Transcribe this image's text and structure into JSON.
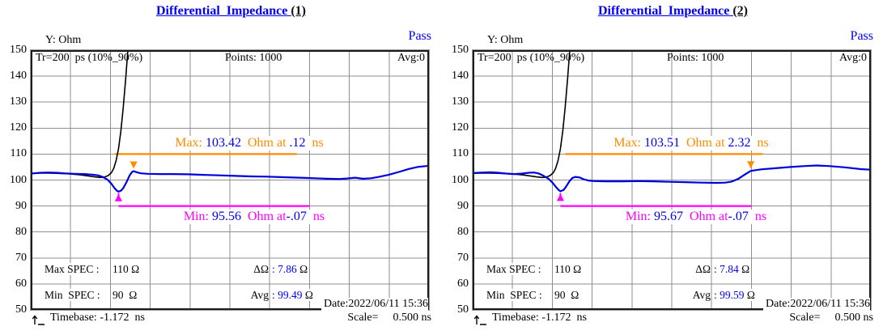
{
  "colors": {
    "blue": "#0000ee",
    "orange": "#ff8c00",
    "magenta": "#ff00ff",
    "grid": "#8f8f8f",
    "frame": "#1c1c1c",
    "trace_blue": "#0000dd",
    "trace_black": "#000000"
  },
  "chart_data": [
    {
      "type": "line",
      "title": "Differential_Impedance ",
      "title_suffix": "(1)",
      "status": "Pass",
      "date": "Date:2022/06/11 15:36",
      "header": {
        "tr": "Tr=200  ps (10%_90%)",
        "points": "Points: 1000",
        "avg": "Avg:0"
      },
      "y_axis": {
        "label": "Y: Ohm",
        "min": 50,
        "max": 150,
        "tick_step": 10,
        "ticks": [
          150,
          140,
          130,
          120,
          110,
          100,
          90,
          80,
          70,
          60,
          50
        ]
      },
      "x_axis": {
        "timebase_ns": -1.172,
        "scale_ns_per_div": 0.5,
        "divisions": 10,
        "unit": "ns"
      },
      "footer": {
        "timebase": "Timebase: -1.172  ns",
        "scale_label": "Scale=",
        "scale_value": "0.500 ns"
      },
      "max": {
        "label": "Max: ",
        "value": "103.42",
        "mid": "  Ohm at ",
        "time": ".12",
        "unit": "  ns",
        "value_num": 103.42,
        "time_ns": 0.12,
        "level_ohm": 110,
        "line_from_ns": -0.12,
        "line_to_ns": 2.17,
        "arrow_ns": 0.12
      },
      "min": {
        "label": "Min: ",
        "value": "95.56",
        "mid": "  Ohm at",
        "time": "-.07",
        "unit": "  ns",
        "value_num": 95.56,
        "time_ns": -0.07,
        "level_ohm": 90,
        "line_from_ns": -0.07,
        "line_to_ns": 2.33,
        "arrow_ns": -0.07
      },
      "specs": {
        "max_spec_label": "Max SPEC :",
        "max_spec_value": "110 Ω",
        "min_spec_label": "Min  SPEC :",
        "min_spec_value": "90  Ω",
        "delta_label": "ΔΩ",
        "delta_value": ": 7.86",
        "delta_unit": " Ω",
        "avg_label": "Avg",
        "avg_value": ": 99.49",
        "avg_unit": " Ω"
      },
      "measurements": {
        "max_ohm": 103.42,
        "max_at_ns": 0.12,
        "min_ohm": 95.56,
        "min_at_ns": -0.07,
        "delta_ohm": 7.86,
        "avg_ohm": 99.49,
        "max_spec_ohm": 110,
        "min_spec_ohm": 90,
        "points": 1000,
        "tr_ps": 200,
        "avg_count": 0
      },
      "series": [
        {
          "name": "differential_impedance_trace",
          "color": "#0000dd",
          "x_unit": "ns",
          "y_unit": "Ohm",
          "points": [
            [
              -1.172,
              102.5
            ],
            [
              -1.05,
              102.8
            ],
            [
              -0.95,
              102.9
            ],
            [
              -0.85,
              102.8
            ],
            [
              -0.75,
              102.6
            ],
            [
              -0.62,
              102.4
            ],
            [
              -0.5,
              102.3
            ],
            [
              -0.4,
              102.1
            ],
            [
              -0.33,
              101.8
            ],
            [
              -0.27,
              101.2
            ],
            [
              -0.21,
              100.2
            ],
            [
              -0.16,
              98.6
            ],
            [
              -0.12,
              96.9
            ],
            [
              -0.09,
              95.9
            ],
            [
              -0.07,
              95.56
            ],
            [
              -0.04,
              95.9
            ],
            [
              -0.01,
              96.9
            ],
            [
              0.03,
              99.2
            ],
            [
              0.07,
              101.8
            ],
            [
              0.1,
              103.1
            ],
            [
              0.12,
              103.42
            ],
            [
              0.16,
              103.0
            ],
            [
              0.21,
              102.6
            ],
            [
              0.3,
              102.4
            ],
            [
              0.45,
              102.3
            ],
            [
              0.6,
              102.3
            ],
            [
              0.8,
              102.2
            ],
            [
              1.0,
              102.0
            ],
            [
              1.2,
              101.8
            ],
            [
              1.4,
              101.6
            ],
            [
              1.6,
              101.4
            ],
            [
              1.8,
              101.3
            ],
            [
              2.0,
              101.1
            ],
            [
              2.2,
              100.9
            ],
            [
              2.4,
              100.7
            ],
            [
              2.55,
              100.5
            ],
            [
              2.7,
              100.4
            ],
            [
              2.8,
              100.6
            ],
            [
              2.9,
              100.9
            ],
            [
              3.0,
              100.5
            ],
            [
              3.1,
              100.7
            ],
            [
              3.2,
              101.2
            ],
            [
              3.32,
              102.0
            ],
            [
              3.45,
              103.1
            ],
            [
              3.58,
              104.3
            ],
            [
              3.7,
              105.1
            ],
            [
              3.8,
              105.4
            ],
            [
              3.828,
              105.5
            ]
          ]
        },
        {
          "name": "step_edge_trace",
          "color": "#000000",
          "x_unit": "ns",
          "y_unit": "Ohm",
          "points": [
            [
              -1.172,
              102.6
            ],
            [
              -1.0,
              102.7
            ],
            [
              -0.85,
              102.6
            ],
            [
              -0.7,
              102.4
            ],
            [
              -0.55,
              102.0
            ],
            [
              -0.45,
              101.6
            ],
            [
              -0.37,
              101.2
            ],
            [
              -0.3,
              101.0
            ],
            [
              -0.25,
              101.1
            ],
            [
              -0.2,
              101.7
            ],
            [
              -0.16,
              102.8
            ],
            [
              -0.13,
              104.5
            ],
            [
              -0.1,
              107.5
            ],
            [
              -0.07,
              112.0
            ],
            [
              -0.04,
              119.0
            ],
            [
              -0.01,
              128.0
            ],
            [
              0.02,
              139.0
            ],
            [
              0.05,
              151.0
            ],
            [
              0.07,
              158.0
            ]
          ]
        }
      ]
    },
    {
      "type": "line",
      "title": "Differential_Impedance ",
      "title_suffix": "(2)",
      "status": "Pass",
      "date": "Date:2022/06/11 15:36",
      "header": {
        "tr": "Tr=200  ps (10%_90%)",
        "points": "Points: 1000",
        "avg": "Avg:0"
      },
      "y_axis": {
        "label": "Y: Ohm",
        "min": 50,
        "max": 150,
        "tick_step": 10,
        "ticks": [
          150,
          140,
          130,
          120,
          110,
          100,
          90,
          80,
          70,
          60,
          50
        ]
      },
      "x_axis": {
        "timebase_ns": -1.172,
        "scale_ns_per_div": 0.5,
        "divisions": 10,
        "unit": "ns"
      },
      "footer": {
        "timebase": "Timebase: -1.172  ns",
        "scale_label": "Scale=",
        "scale_value": "0.500 ns"
      },
      "max": {
        "label": "Max: ",
        "value": "103.51",
        "mid": "  Ohm at ",
        "time": "2.32",
        "unit": "  ns",
        "value_num": 103.51,
        "time_ns": 2.32,
        "level_ohm": 110,
        "line_from_ns": -0.01,
        "line_to_ns": 2.47,
        "arrow_ns": 2.32
      },
      "min": {
        "label": "Min: ",
        "value": "95.67",
        "mid": "  Ohm at",
        "time": "-.07",
        "unit": "  ns",
        "value_num": 95.67,
        "time_ns": -0.07,
        "level_ohm": 90,
        "line_from_ns": -0.07,
        "line_to_ns": 2.33,
        "arrow_ns": -0.07
      },
      "specs": {
        "max_spec_label": "Max SPEC :",
        "max_spec_value": "110 Ω",
        "min_spec_label": "Min  SPEC :",
        "min_spec_value": "90  Ω",
        "delta_label": "ΔΩ",
        "delta_value": ": 7.84",
        "delta_unit": " Ω",
        "avg_label": "Avg",
        "avg_value": ": 99.59",
        "avg_unit": " Ω"
      },
      "measurements": {
        "max_ohm": 103.51,
        "max_at_ns": 2.32,
        "min_ohm": 95.67,
        "min_at_ns": -0.07,
        "delta_ohm": 7.84,
        "avg_ohm": 99.59,
        "max_spec_ohm": 110,
        "min_spec_ohm": 90,
        "points": 1000,
        "tr_ps": 200,
        "avg_count": 0
      },
      "series": [
        {
          "name": "differential_impedance_trace",
          "color": "#0000dd",
          "x_unit": "ns",
          "y_unit": "Ohm",
          "points": [
            [
              -1.172,
              102.7
            ],
            [
              -1.05,
              102.9
            ],
            [
              -0.95,
              103.0
            ],
            [
              -0.85,
              102.8
            ],
            [
              -0.75,
              102.5
            ],
            [
              -0.65,
              102.3
            ],
            [
              -0.55,
              102.5
            ],
            [
              -0.47,
              102.8
            ],
            [
              -0.4,
              102.9
            ],
            [
              -0.34,
              102.5
            ],
            [
              -0.28,
              101.6
            ],
            [
              -0.22,
              100.5
            ],
            [
              -0.17,
              99.0
            ],
            [
              -0.12,
              97.1
            ],
            [
              -0.09,
              96.1
            ],
            [
              -0.07,
              95.67
            ],
            [
              -0.03,
              96.2
            ],
            [
              0.0,
              97.4
            ],
            [
              0.04,
              99.4
            ],
            [
              0.08,
              100.8
            ],
            [
              0.12,
              101.2
            ],
            [
              0.17,
              101.0
            ],
            [
              0.22,
              100.3
            ],
            [
              0.28,
              99.8
            ],
            [
              0.36,
              99.6
            ],
            [
              0.5,
              99.5
            ],
            [
              0.7,
              99.5
            ],
            [
              0.9,
              99.6
            ],
            [
              1.1,
              99.5
            ],
            [
              1.3,
              99.3
            ],
            [
              1.5,
              99.2
            ],
            [
              1.7,
              99.0
            ],
            [
              1.9,
              98.9
            ],
            [
              2.0,
              99.0
            ],
            [
              2.08,
              99.4
            ],
            [
              2.16,
              100.4
            ],
            [
              2.24,
              102.0
            ],
            [
              2.32,
              103.51
            ],
            [
              2.45,
              104.1
            ],
            [
              2.6,
              104.5
            ],
            [
              2.8,
              105.0
            ],
            [
              3.0,
              105.4
            ],
            [
              3.15,
              105.6
            ],
            [
              3.3,
              105.4
            ],
            [
              3.5,
              104.9
            ],
            [
              3.7,
              104.2
            ],
            [
              3.828,
              104.0
            ]
          ]
        },
        {
          "name": "step_edge_trace",
          "color": "#000000",
          "x_unit": "ns",
          "y_unit": "Ohm",
          "points": [
            [
              -1.172,
              102.6
            ],
            [
              -1.0,
              102.7
            ],
            [
              -0.85,
              102.6
            ],
            [
              -0.7,
              102.4
            ],
            [
              -0.55,
              102.0
            ],
            [
              -0.45,
              101.6
            ],
            [
              -0.37,
              101.2
            ],
            [
              -0.3,
              101.0
            ],
            [
              -0.25,
              101.1
            ],
            [
              -0.2,
              101.7
            ],
            [
              -0.16,
              102.8
            ],
            [
              -0.13,
              104.5
            ],
            [
              -0.1,
              107.5
            ],
            [
              -0.07,
              112.0
            ],
            [
              -0.04,
              119.0
            ],
            [
              -0.01,
              128.0
            ],
            [
              0.02,
              139.0
            ],
            [
              0.05,
              151.0
            ],
            [
              0.07,
              158.0
            ]
          ]
        }
      ]
    }
  ]
}
